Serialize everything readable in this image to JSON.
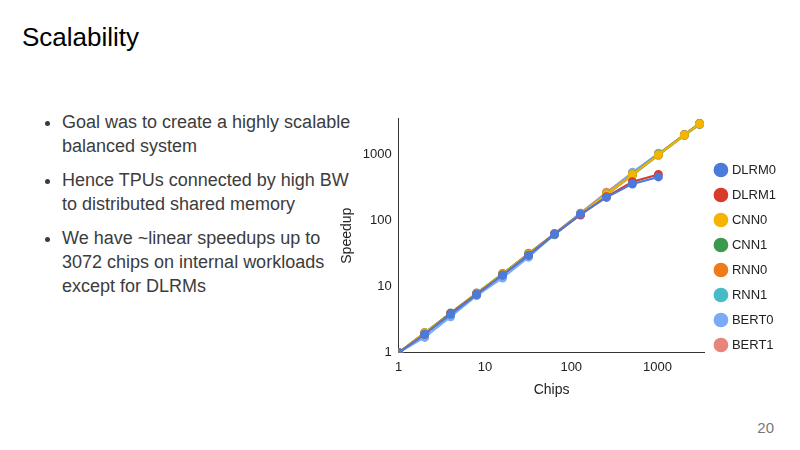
{
  "slide": {
    "title": "Scalability",
    "bullets": [
      "Goal was to create a highly scalable balanced system",
      "Hence TPUs connected by high BW to distributed shared memory",
      "We have ~linear speedups up to 3072 chips on internal workloads except for DLRMs"
    ],
    "page_number": "20"
  },
  "chart_data": {
    "type": "line",
    "x_label": "Chips",
    "y_label": "Speedup",
    "x": [
      1,
      2,
      4,
      8,
      16,
      32,
      64,
      128,
      256,
      512,
      1024,
      2048,
      3072
    ],
    "series": [
      {
        "name": "DLRM0",
        "color": "#4a7bdb",
        "values": [
          1,
          1.9,
          3.8,
          7.6,
          15,
          30,
          62,
          125,
          225,
          360,
          460,
          null,
          null
        ]
      },
      {
        "name": "DLRM1",
        "color": "#d93b2b",
        "values": [
          1,
          1.9,
          3.9,
          7.7,
          15,
          30,
          63,
          122,
          230,
          390,
          500,
          null,
          null
        ]
      },
      {
        "name": "CNN0",
        "color": "#f4b400",
        "values": [
          1,
          2,
          3.9,
          7.9,
          15.7,
          31,
          63,
          126,
          250,
          500,
          1000,
          1990,
          2950
        ]
      },
      {
        "name": "CNN1",
        "color": "#3a9a4e",
        "values": [
          1,
          2,
          4,
          8,
          15.8,
          31.5,
          63,
          127,
          252,
          505,
          1010,
          2000,
          2980
        ]
      },
      {
        "name": "RNN0",
        "color": "#f07a1a",
        "values": [
          1,
          2,
          3.9,
          7.8,
          15.5,
          31,
          62,
          124,
          248,
          495,
          990,
          1980,
          2900
        ]
      },
      {
        "name": "RNN1",
        "color": "#46bdc6",
        "values": [
          1,
          1.9,
          3.8,
          7.6,
          15,
          30,
          61,
          125,
          245,
          490,
          980,
          1950,
          2850
        ]
      },
      {
        "name": "BERT0",
        "color": "#7baaf7",
        "values": [
          1,
          1.7,
          3.5,
          7.3,
          13.5,
          28,
          62,
          130,
          260,
          540,
          1050,
          null,
          null
        ]
      },
      {
        "name": "BERT1",
        "color": "#e8857a",
        "values": [
          1,
          2,
          3.9,
          7.8,
          15.5,
          32,
          64,
          130,
          270,
          530,
          1020,
          2030,
          3000
        ]
      }
    ],
    "xlim": [
      1,
      3500
    ],
    "ylim": [
      1,
      3500
    ],
    "xticks": [
      1,
      10,
      100,
      1000
    ],
    "yticks": [
      1,
      10,
      100,
      1000
    ],
    "log": true,
    "grid": false,
    "legend": "right",
    "marker": "circle",
    "line_style": "solid"
  }
}
